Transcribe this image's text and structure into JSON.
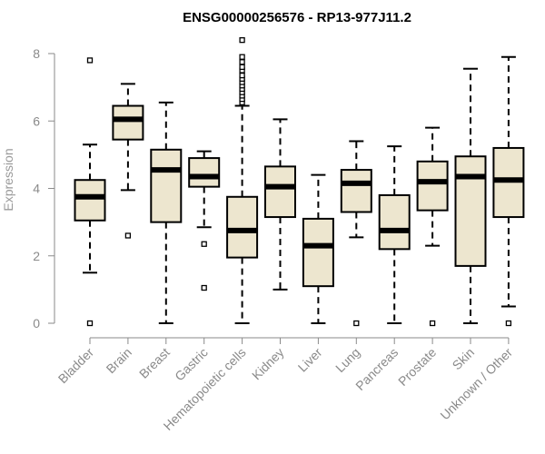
{
  "chart_data": {
    "type": "boxplot",
    "title": "ENSG00000256576 - RP13-977J11.2",
    "xlabel": "",
    "ylabel": "Expression",
    "ylim": [
      0,
      8
    ],
    "yticks": [
      0,
      2,
      4,
      6,
      8
    ],
    "grid": false,
    "legend": "none",
    "box_fill": "#ede6cf",
    "box_stroke": "#000000",
    "axis_color": "#8a8a8a",
    "categories": [
      "Bladder",
      "Brain",
      "Breast",
      "Gastric",
      "Hematopoietic cells",
      "Kidney",
      "Liver",
      "Lung",
      "Pancreas",
      "Prostate",
      "Skin",
      "Unknown / Other"
    ],
    "boxes": [
      {
        "category": "Bladder",
        "whisker_low": 1.5,
        "q1": 3.05,
        "median": 3.75,
        "q3": 4.25,
        "whisker_high": 5.3,
        "outliers": [
          7.8,
          0.0
        ]
      },
      {
        "category": "Brain",
        "whisker_low": 3.95,
        "q1": 5.45,
        "median": 6.05,
        "q3": 6.45,
        "whisker_high": 7.1,
        "outliers": [
          2.6
        ]
      },
      {
        "category": "Breast",
        "whisker_low": 0.0,
        "q1": 3.0,
        "median": 4.55,
        "q3": 5.15,
        "whisker_high": 6.55,
        "outliers": []
      },
      {
        "category": "Gastric",
        "whisker_low": 2.85,
        "q1": 4.05,
        "median": 4.35,
        "q3": 4.9,
        "whisker_high": 5.1,
        "outliers": [
          2.35,
          1.05
        ]
      },
      {
        "category": "Hematopoietic cells",
        "whisker_low": 0.0,
        "q1": 1.95,
        "median": 2.75,
        "q3": 3.75,
        "whisker_high": 6.45,
        "outliers": [
          6.55,
          6.65,
          6.75,
          6.85,
          6.95,
          7.05,
          7.15,
          7.25,
          7.35,
          7.5,
          7.6,
          7.75,
          7.9,
          8.4
        ]
      },
      {
        "category": "Kidney",
        "whisker_low": 1.0,
        "q1": 3.15,
        "median": 4.05,
        "q3": 4.65,
        "whisker_high": 6.05,
        "outliers": []
      },
      {
        "category": "Liver",
        "whisker_low": 0.0,
        "q1": 1.1,
        "median": 2.3,
        "q3": 3.1,
        "whisker_high": 4.4,
        "outliers": []
      },
      {
        "category": "Lung",
        "whisker_low": 2.55,
        "q1": 3.3,
        "median": 4.15,
        "q3": 4.55,
        "whisker_high": 5.4,
        "outliers": [
          0.0
        ]
      },
      {
        "category": "Pancreas",
        "whisker_low": 0.0,
        "q1": 2.2,
        "median": 2.75,
        "q3": 3.8,
        "whisker_high": 5.25,
        "outliers": []
      },
      {
        "category": "Prostate",
        "whisker_low": 2.3,
        "q1": 3.35,
        "median": 4.2,
        "q3": 4.8,
        "whisker_high": 5.8,
        "outliers": [
          0.0
        ]
      },
      {
        "category": "Skin",
        "whisker_low": 0.0,
        "q1": 1.7,
        "median": 4.35,
        "q3": 4.95,
        "whisker_high": 7.55,
        "outliers": []
      },
      {
        "category": "Unknown / Other",
        "whisker_low": 0.5,
        "q1": 3.15,
        "median": 4.25,
        "q3": 5.2,
        "whisker_high": 7.9,
        "outliers": [
          0.0
        ]
      }
    ]
  }
}
